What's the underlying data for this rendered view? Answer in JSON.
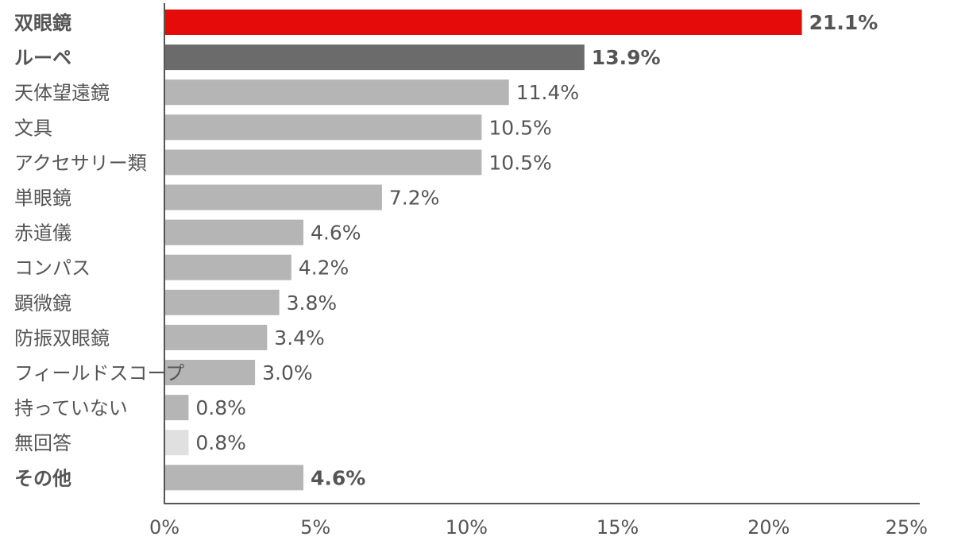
{
  "chart_data": {
    "type": "bar",
    "orientation": "horizontal",
    "categories": [
      "双眼鏡",
      "ルーペ",
      "天体望遠鏡",
      "文具",
      "アクセサリー類",
      "単眼鏡",
      "赤道儀",
      "コンパス",
      "顕微鏡",
      "防振双眼鏡",
      "フィールドスコープ",
      "持っていない",
      "無回答",
      "その他"
    ],
    "values": [
      21.1,
      13.9,
      11.4,
      10.5,
      10.5,
      7.2,
      4.6,
      4.2,
      3.8,
      3.4,
      3.0,
      0.8,
      0.8,
      4.6
    ],
    "value_labels": [
      "21.1%",
      "13.9%",
      "11.4%",
      "10.5%",
      "10.5%",
      "7.2%",
      "4.6%",
      "4.2%",
      "3.8%",
      "3.4%",
      "3.0%",
      "0.8%",
      "0.8%",
      "4.6%"
    ],
    "bar_colors": [
      "#e60b0b",
      "#6b6b6b",
      "#b5b5b5",
      "#b5b5b5",
      "#b5b5b5",
      "#b5b5b5",
      "#b5b5b5",
      "#b5b5b5",
      "#b5b5b5",
      "#b5b5b5",
      "#b5b5b5",
      "#b5b5b5",
      "#e0e0e0",
      "#b5b5b5"
    ],
    "label_colors": [
      "#e60b0b",
      "#555555",
      "#555555",
      "#555555",
      "#555555",
      "#555555",
      "#555555",
      "#555555",
      "#555555",
      "#555555",
      "#555555",
      "#555555",
      "#555555",
      "#555555"
    ],
    "bold_labels": [
      true,
      true,
      false,
      false,
      false,
      false,
      false,
      false,
      false,
      false,
      false,
      false,
      false,
      true
    ],
    "xlim": [
      0,
      25
    ],
    "xticks": [
      0,
      5,
      10,
      15,
      20,
      25
    ],
    "xtick_labels": [
      "0%",
      "5%",
      "10%",
      "15%",
      "20%",
      "25%"
    ],
    "grid": false,
    "legend": "none",
    "title": "",
    "xlabel": "",
    "ylabel": ""
  }
}
